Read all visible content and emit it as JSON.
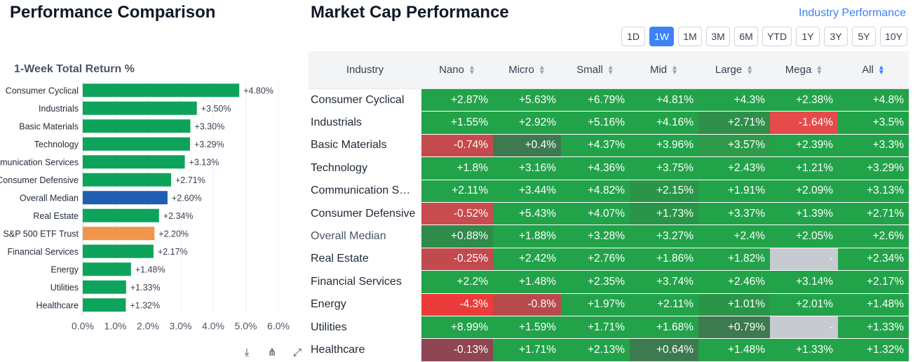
{
  "left_panel": {
    "title": "Performance Comparison",
    "chart_title": "1-Week Total Return %",
    "tools": [
      {
        "name": "download-icon",
        "glyph": "⤓"
      },
      {
        "name": "share-icon",
        "glyph": "⋔"
      },
      {
        "name": "fullscreen-icon",
        "glyph": "⤢"
      }
    ]
  },
  "chart_data": {
    "type": "bar",
    "orientation": "horizontal",
    "title": "1-Week Total Return %",
    "categories": [
      "Consumer Cyclical",
      "Industrials",
      "Basic Materials",
      "Technology",
      "Communication Services",
      "Consumer Defensive",
      "Overall Median",
      "Real Estate",
      "S&P 500 ETF Trust",
      "Financial Services",
      "Energy",
      "Utilities",
      "Healthcare"
    ],
    "values": [
      4.8,
      3.5,
      3.3,
      3.29,
      3.13,
      2.71,
      2.6,
      2.34,
      2.2,
      2.17,
      1.48,
      1.33,
      1.32
    ],
    "value_labels": [
      "+4.80%",
      "+3.50%",
      "+3.30%",
      "+3.29%",
      "+3.13%",
      "+2.71%",
      "+2.60%",
      "+2.34%",
      "+2.20%",
      "+2.17%",
      "+1.48%",
      "+1.33%",
      "+1.32%"
    ],
    "bar_colors": [
      "#0ea35a",
      "#0ea35a",
      "#0ea35a",
      "#0ea35a",
      "#0ea35a",
      "#0ea35a",
      "#1f5fb2",
      "#0ea35a",
      "#f0954a",
      "#0ea35a",
      "#0ea35a",
      "#0ea35a",
      "#0ea35a"
    ],
    "xlim": [
      0,
      6
    ],
    "xticks": [
      0,
      1,
      2,
      3,
      4,
      5,
      6
    ],
    "xtick_labels": [
      "0.0%",
      "1.0%",
      "2.0%",
      "3.0%",
      "4.0%",
      "5.0%",
      "6.0%"
    ],
    "grid": true
  },
  "right_panel": {
    "title": "Market Cap Performance",
    "industry_link": "Industry Performance",
    "tabs": [
      "1D",
      "1W",
      "1M",
      "3M",
      "6M",
      "YTD",
      "1Y",
      "3Y",
      "5Y",
      "10Y"
    ],
    "active_tab": "1W",
    "columns": [
      "Industry",
      "Nano",
      "Micro",
      "Small",
      "Mid",
      "Large",
      "Mega",
      "All"
    ],
    "rows": [
      {
        "industry": "Consumer Cyclical",
        "cells": [
          "+2.87%",
          "+5.63%",
          "+6.79%",
          "+4.81%",
          "+4.3%",
          "+2.38%",
          "+4.8%"
        ],
        "colors": [
          "#22a34a",
          "#22a34a",
          "#22a34a",
          "#22a34a",
          "#22a34a",
          "#22a34a",
          "#22a34a"
        ]
      },
      {
        "industry": "Industrials",
        "cells": [
          "+1.55%",
          "+2.92%",
          "+5.16%",
          "+4.16%",
          "+2.71%",
          "-1.64%",
          "+3.5%"
        ],
        "colors": [
          "#22a34a",
          "#22a34a",
          "#22a34a",
          "#22a34a",
          "#2f8f4a",
          "#e54b4b",
          "#22a34a"
        ]
      },
      {
        "industry": "Basic Materials",
        "cells": [
          "-0.74%",
          "+0.4%",
          "+4.37%",
          "+3.96%",
          "+3.57%",
          "+2.39%",
          "+3.3%"
        ],
        "colors": [
          "#c54a4d",
          "#3d7a4f",
          "#22a34a",
          "#22a34a",
          "#2f9b4a",
          "#22a34a",
          "#22a34a"
        ]
      },
      {
        "industry": "Technology",
        "cells": [
          "+1.8%",
          "+3.16%",
          "+4.36%",
          "+3.75%",
          "+2.43%",
          "+1.21%",
          "+3.29%"
        ],
        "colors": [
          "#22a34a",
          "#22a34a",
          "#22a34a",
          "#22a34a",
          "#22a34a",
          "#22a34a",
          "#22a34a"
        ]
      },
      {
        "industry": "Communication Services",
        "cells": [
          "+2.11%",
          "+3.44%",
          "+4.82%",
          "+2.15%",
          "+1.91%",
          "+2.09%",
          "+3.13%"
        ],
        "colors": [
          "#22a34a",
          "#22a34a",
          "#22a34a",
          "#2a9548",
          "#22a34a",
          "#22a34a",
          "#22a34a"
        ]
      },
      {
        "industry": "Consumer Defensive",
        "cells": [
          "-0.52%",
          "+5.43%",
          "+4.07%",
          "+1.73%",
          "+3.37%",
          "+1.39%",
          "+2.71%"
        ],
        "colors": [
          "#c84b4e",
          "#22a34a",
          "#22a34a",
          "#2a9548",
          "#22a34a",
          "#22a34a",
          "#22a34a"
        ]
      },
      {
        "industry": "Overall Median",
        "cells": [
          "+0.88%",
          "+1.88%",
          "+3.28%",
          "+3.27%",
          "+2.4%",
          "+2.05%",
          "+2.6%"
        ],
        "colors": [
          "#2e8b4a",
          "#22a34a",
          "#22a34a",
          "#22a34a",
          "#22a34a",
          "#22a34a",
          "#22a34a"
        ]
      },
      {
        "industry": "Real Estate",
        "cells": [
          "-0.25%",
          "+2.42%",
          "+2.76%",
          "+1.86%",
          "+1.82%",
          "-",
          "+2.34%"
        ],
        "colors": [
          "#c24a4d",
          "#22a34a",
          "#22a34a",
          "#22a34a",
          "#22a34a",
          "#c7cbd1",
          "#22a34a"
        ]
      },
      {
        "industry": "Financial Services",
        "cells": [
          "+2.2%",
          "+1.48%",
          "+2.35%",
          "+3.74%",
          "+2.46%",
          "+3.14%",
          "+2.17%"
        ],
        "colors": [
          "#22a34a",
          "#22a34a",
          "#22a34a",
          "#22a34a",
          "#22a34a",
          "#22a34a",
          "#22a34a"
        ]
      },
      {
        "industry": "Energy",
        "cells": [
          "-4.3%",
          "-0.8%",
          "+1.97%",
          "+2.11%",
          "+1.01%",
          "+2.01%",
          "+1.48%"
        ],
        "colors": [
          "#ec3b3b",
          "#b94a4c",
          "#22a34a",
          "#22a34a",
          "#2a9548",
          "#22a34a",
          "#22a34a"
        ]
      },
      {
        "industry": "Utilities",
        "cells": [
          "+8.99%",
          "+1.59%",
          "+1.71%",
          "+1.68%",
          "+0.79%",
          "-",
          "+1.33%"
        ],
        "colors": [
          "#22a34a",
          "#22a34a",
          "#22a34a",
          "#22a34a",
          "#3d7a4f",
          "#c7cbd1",
          "#22a34a"
        ]
      },
      {
        "industry": "Healthcare",
        "cells": [
          "-0.13%",
          "+1.71%",
          "+2.13%",
          "+0.64%",
          "+1.48%",
          "+1.33%",
          "+1.32%"
        ],
        "colors": [
          "#8f4552",
          "#22a34a",
          "#22a34a",
          "#3d7a4f",
          "#22a34a",
          "#22a34a",
          "#22a34a"
        ]
      }
    ]
  }
}
